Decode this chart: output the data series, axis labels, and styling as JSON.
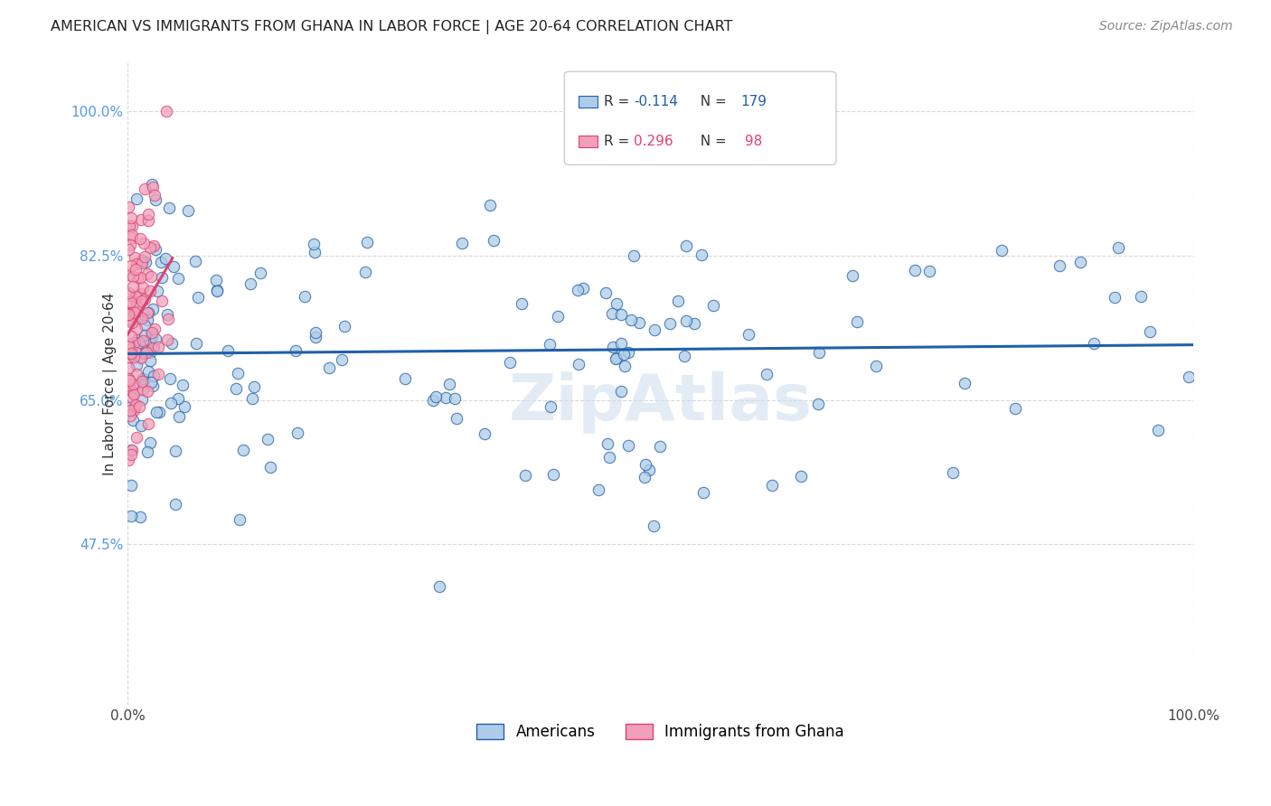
{
  "title": "AMERICAN VS IMMIGRANTS FROM GHANA IN LABOR FORCE | AGE 20-64 CORRELATION CHART",
  "source": "Source: ZipAtlas.com",
  "ylabel": "In Labor Force | Age 20-64",
  "r_american": -0.114,
  "n_american": 179,
  "r_ghana": 0.296,
  "n_ghana": 98,
  "xlim": [
    0.0,
    1.0
  ],
  "ylim": [
    0.28,
    1.06
  ],
  "yticks": [
    0.475,
    0.65,
    0.825,
    1.0
  ],
  "ytick_labels": [
    "47.5%",
    "65.0%",
    "82.5%",
    "100.0%"
  ],
  "color_american": "#aecce8",
  "color_ghana": "#f0a0b8",
  "trendline_american": "#2060a8",
  "trendline_ghana": "#e04070",
  "background_color": "#ffffff",
  "grid_color": "#d8d8d8",
  "watermark": "ZipAtlas",
  "legend_r_color_am": "#2060a8",
  "legend_r_color_gh": "#e04070",
  "legend_n_color": "#333333"
}
